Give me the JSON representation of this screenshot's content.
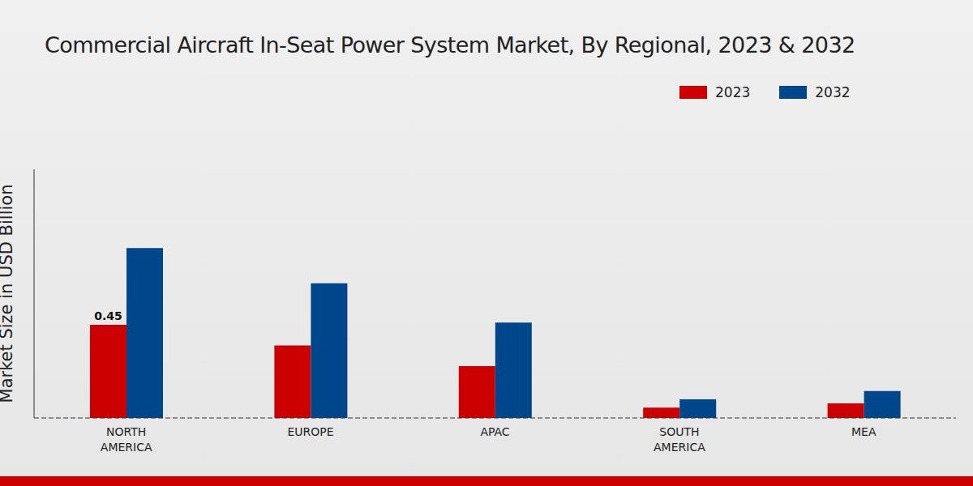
{
  "chart_data": {
    "type": "bar",
    "title": "Commercial Aircraft In-Seat Power System Market, By Regional, 2023 & 2032",
    "y_label": "Market Size in USD Billion",
    "categories": [
      "NORTH AMERICA",
      "EUROPE",
      "APAC",
      "SOUTH AMERICA",
      "MEA"
    ],
    "series": [
      {
        "name": "2023",
        "color": "#cc0000",
        "values": [
          0.45,
          0.35,
          0.25,
          0.05,
          0.07
        ],
        "value_labels": [
          "0.45",
          null,
          null,
          null,
          null
        ]
      },
      {
        "name": "2032",
        "color": "#00468b",
        "values": [
          0.82,
          0.65,
          0.46,
          0.09,
          0.13
        ]
      }
    ],
    "ylim": [
      0,
      1.2
    ],
    "yticks": [],
    "tick_labels": "x",
    "legend": "top-right",
    "data_labels": true,
    "grid": false
  }
}
